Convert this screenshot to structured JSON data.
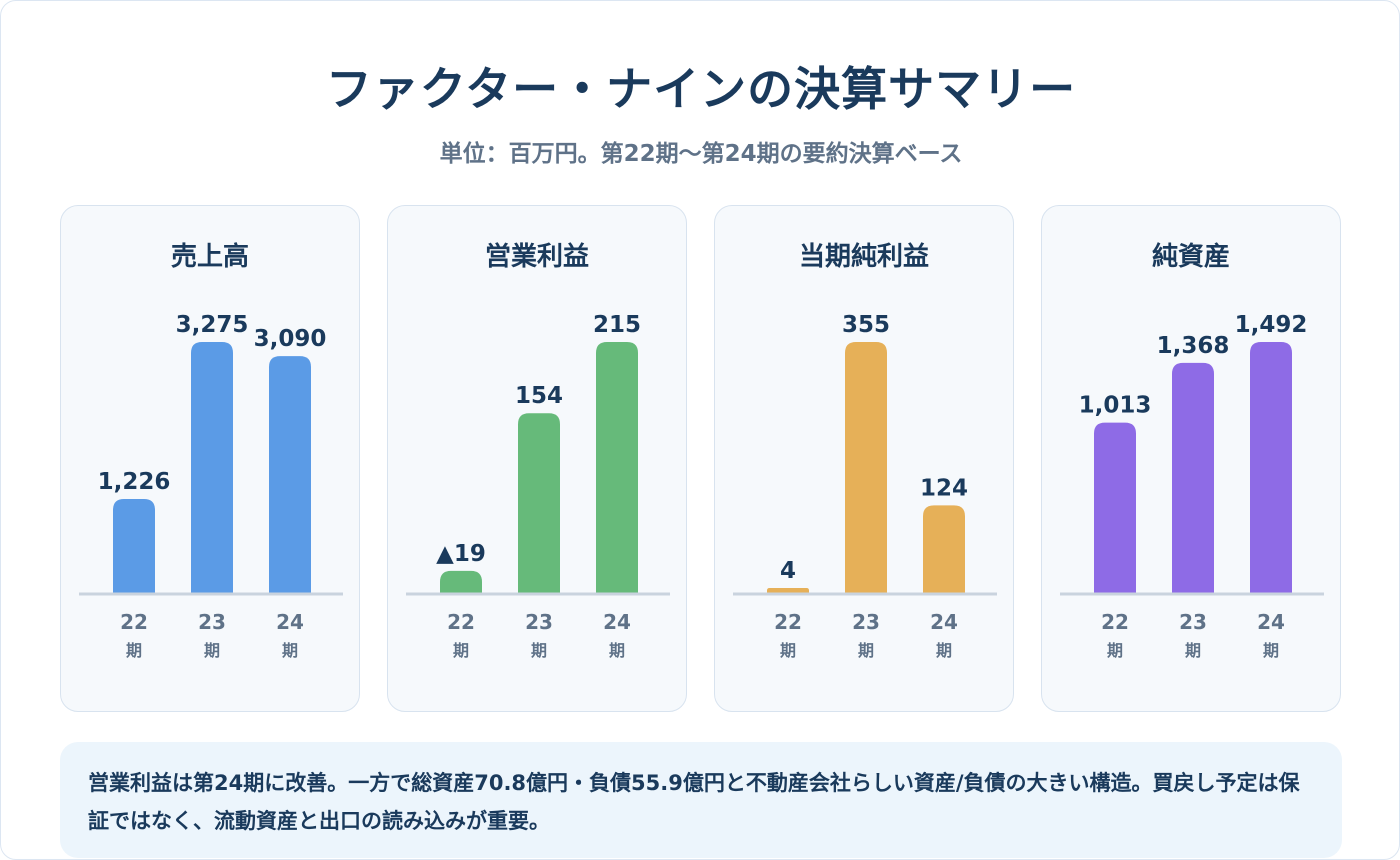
{
  "title": "ファクター・ナインの決算サマリー",
  "subtitle": "単位：百万円。第22期〜第24期の要約決算ベース",
  "note": "営業利益は第24期に改善。一方で総資産70.8億円・負債55.9億円と不動産会社らしい資産/負債の大きい構造。買戻し予定は保証ではなく、流動資産と出口の読み込みが重要。",
  "chart_data": [
    {
      "type": "bar",
      "title": "売上高",
      "categories": [
        "22期",
        "23期",
        "24期"
      ],
      "values": [
        1226,
        3275,
        3090
      ],
      "value_labels": [
        "1,226",
        "3,275",
        "3,090"
      ],
      "color": "#5b9be6"
    },
    {
      "type": "bar",
      "title": "営業利益",
      "categories": [
        "22期",
        "23期",
        "24期"
      ],
      "values": [
        -19,
        154,
        215
      ],
      "value_labels": [
        "▲19",
        "154",
        "215"
      ],
      "color": "#66ba7a"
    },
    {
      "type": "bar",
      "title": "当期純利益",
      "categories": [
        "22期",
        "23期",
        "24期"
      ],
      "values": [
        4,
        355,
        124
      ],
      "value_labels": [
        "4",
        "355",
        "124"
      ],
      "color": "#e6b058"
    },
    {
      "type": "bar",
      "title": "純資産",
      "categories": [
        "22期",
        "23期",
        "24期"
      ],
      "values": [
        1013,
        1368,
        1492
      ],
      "value_labels": [
        "1,013",
        "1,368",
        "1,492"
      ],
      "color": "#8e6be6"
    }
  ]
}
